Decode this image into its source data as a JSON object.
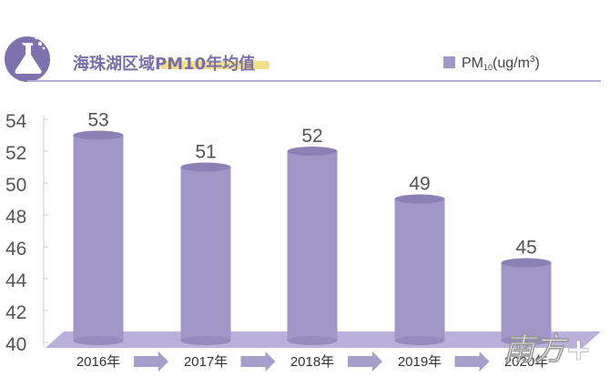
{
  "chart_data": {
    "type": "bar",
    "title": "海珠湖区域PM10年均值",
    "categories": [
      "2016年",
      "2017年",
      "2018年",
      "2019年",
      "2020年"
    ],
    "series": [
      {
        "name": "PM₁₀(ug/m³)",
        "values": [
          53,
          51,
          52,
          49,
          45
        ]
      }
    ],
    "data_labels": [
      "53",
      "51",
      "52",
      "49",
      "45"
    ],
    "y_ticks": [
      "40",
      "42",
      "44",
      "46",
      "48",
      "50",
      "52",
      "54"
    ],
    "ylim": [
      40,
      54
    ],
    "xlabel": "",
    "ylabel": "",
    "grid": false,
    "legend_position": "top-right"
  },
  "legend": {
    "prefix": "PM",
    "subscript": "10",
    "unit_open": "(ug/m",
    "superscript": "3",
    "unit_close": ")"
  },
  "watermark": "南方+",
  "colors": {
    "bar": "#a197c6",
    "bar_top": "#8b81b4",
    "bar_side": "#958bbd",
    "platform": "#b9b0db",
    "arrow": "#a79fcb",
    "title": "#7a6fac",
    "title_highlight": "#f3df8a",
    "rule": "#b4acd3",
    "icon_bg": "#7d72ad",
    "axis_text": "#555555",
    "legend_box": "#a197c6"
  }
}
